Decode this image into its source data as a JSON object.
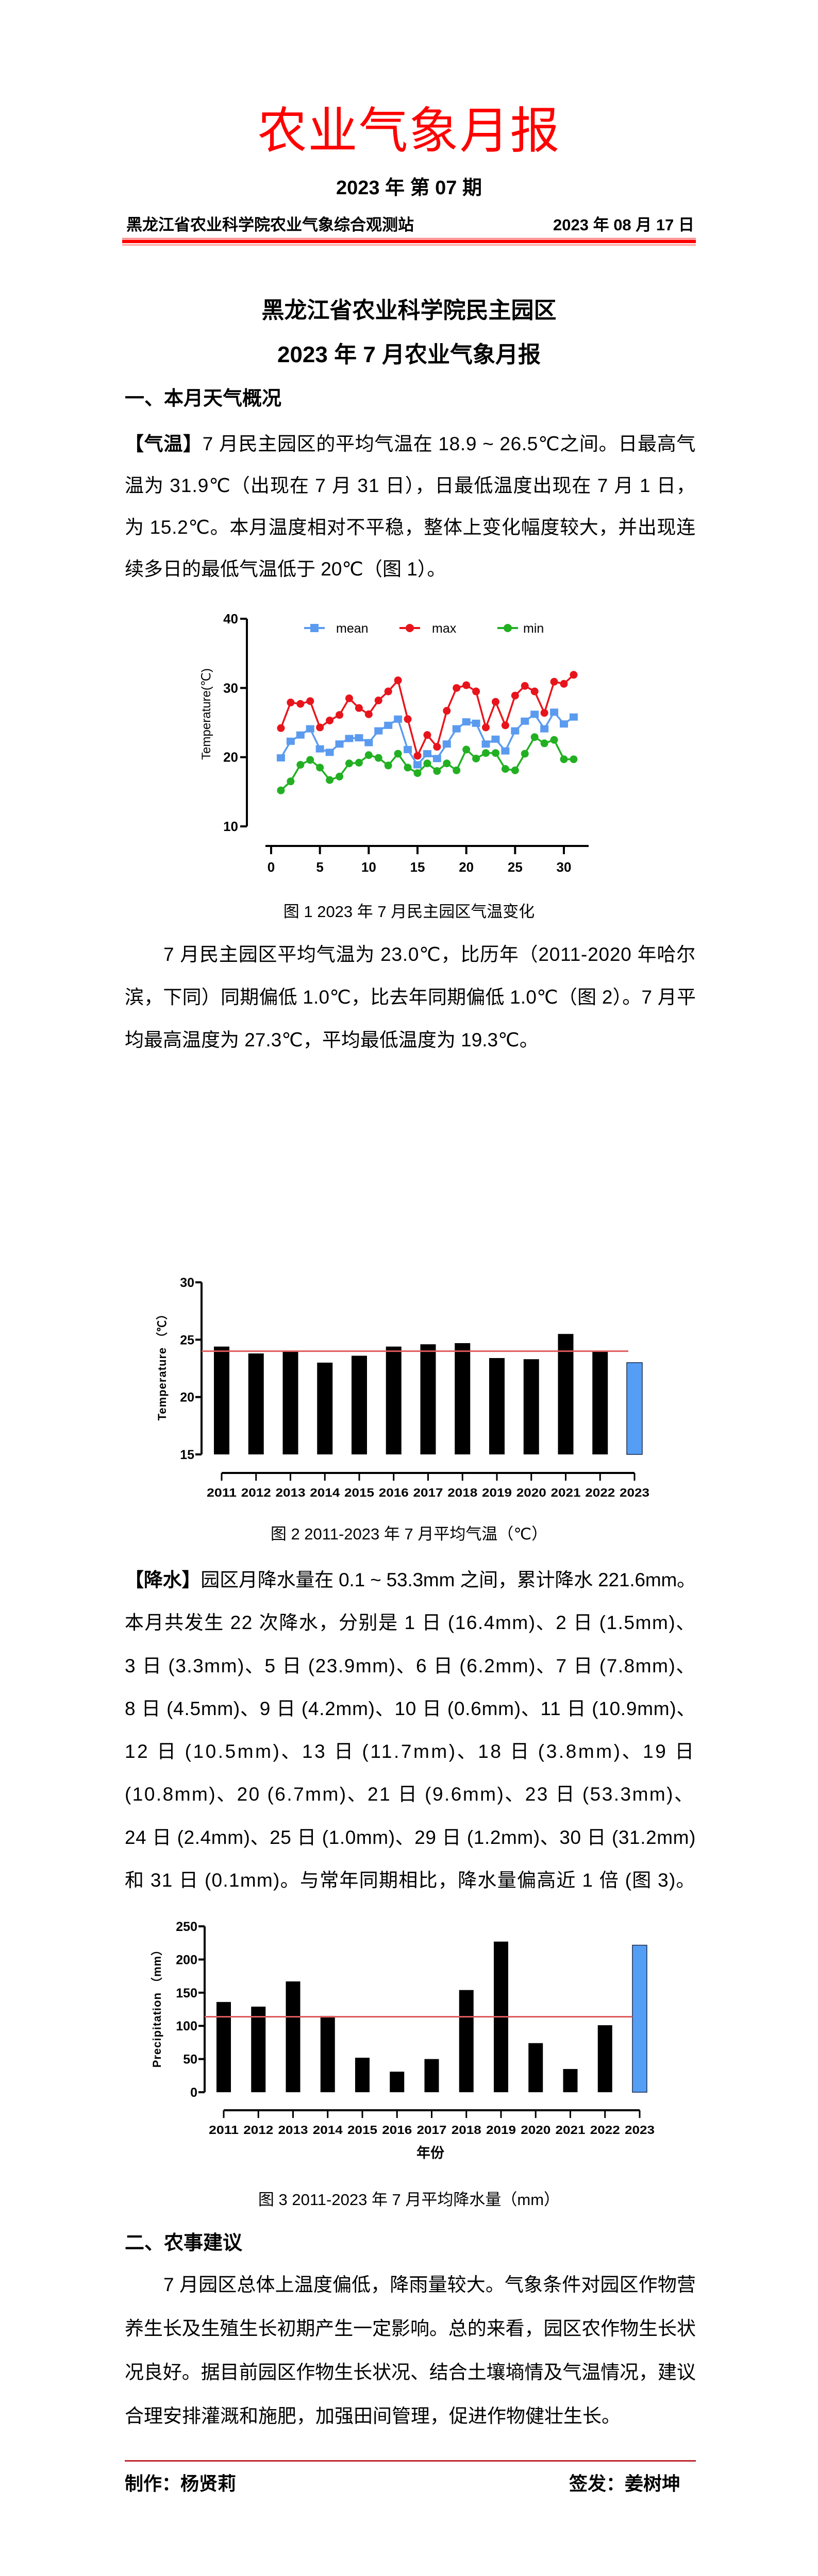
{
  "header": {
    "title": "农业气象月报",
    "issue": "2023 年  第 07 期",
    "organization": "黑龙江省农业科学院农业气象综合观测站",
    "date": "2023 年 08 月 17 日",
    "accent_color": "#ff0000"
  },
  "report": {
    "heading_line1": "黑龙江省农业科学院民主园区",
    "heading_line2": "2023 年 7 月农业气象月报"
  },
  "section1": {
    "title": "一、本月天气概况",
    "temperature": {
      "lead": "【气温】",
      "lines": [
        "7 月民主园区的平均气温在 18.9 ~ 26.5℃之间。日最高气",
        "温为 31.9℃（出现在 7 月 31 日），日最低温度出现在 7 月 1 日，",
        "为 15.2℃。本月温度相对不平稳，整体上变化幅度较大，并出现连",
        "续多日的最低气温低于 20℃（图 1）。"
      ]
    },
    "figure1_caption": "图 1 2023 年 7 月民主园区气温变化",
    "temperature_summary": {
      "lines": [
        "7 月民主园区平均气温为 23.0℃，比历年（2011-2020 年哈尔",
        "滨，下同）同期偏低 1.0℃，比去年同期偏低 1.0℃（图 2）。7 月平",
        "均最高温度为 27.3℃，平均最低温度为 19.3℃。"
      ]
    },
    "figure2_caption": "图 2 2011-2023 年 7 月平均气温（℃）",
    "precipitation": {
      "lead": "【降水】",
      "lines": [
        "园区月降水量在 0.1 ~ 53.3mm 之间，累计降水 221.6mm。",
        "本月共发生 22 次降水，分别是 1 日 (16.4mm)、2 日 (1.5mm)、",
        "3 日 (3.3mm)、5 日 (23.9mm)、6 日 (6.2mm)、7 日 (7.8mm)、",
        "8 日 (4.5mm)、9 日 (4.2mm)、10 日 (0.6mm)、11 日 (10.9mm)、",
        "12 日 (10.5mm)、13 日 (11.7mm)、18 日 (3.8mm)、19 日",
        " (10.8mm)、20 (6.7mm)、21 日 (9.6mm)、23 日 (53.3mm)、",
        "24 日 (2.4mm)、25 日 (1.0mm)、29 日 (1.2mm)、30 日 (31.2mm)",
        "和 31 日 (0.1mm)。与常年同期相比，降水量偏高近 1 倍 (图 3)。"
      ]
    },
    "figure3_caption": "图 3 2011-2023 年 7 月平均降水量（mm）"
  },
  "section2": {
    "title": "二、农事建议",
    "lines": [
      "7 月园区总体上温度偏低，降雨量较大。气象条件对园区作物营",
      "养生长及生殖生长初期产生一定影响。总的来看，园区农作物生长状",
      "况良好。据目前园区作物生长状况、结合土壤墒情及气温情况，建议",
      "合理安排灌溉和施肥，加强田间管理，促进作物健壮生长。"
    ]
  },
  "footer": {
    "author": "制作：杨贤莉",
    "approver": "签发：姜树坤"
  },
  "chart_data": [
    {
      "type": "line",
      "ylabel": "Temperature(℃)",
      "xlabel": "",
      "ylim": [
        10,
        40
      ],
      "yticks": [
        10,
        20,
        30,
        40
      ],
      "xlim": [
        0,
        31
      ],
      "xticks": [
        0,
        5,
        10,
        15,
        20,
        25,
        30
      ],
      "legend": "top",
      "grid": false,
      "x": [
        1,
        2,
        3,
        4,
        5,
        6,
        7,
        8,
        9,
        10,
        11,
        12,
        13,
        14,
        15,
        16,
        17,
        18,
        19,
        20,
        21,
        22,
        23,
        24,
        25,
        26,
        27,
        28,
        29,
        30,
        31
      ],
      "series": [
        {
          "name": "mean",
          "color": "#5b9bef",
          "marker": "square",
          "values": [
            19.9,
            22.3,
            23.2,
            24.1,
            21.2,
            20.7,
            21.9,
            22.7,
            22.8,
            22.1,
            23.8,
            24.6,
            25.5,
            21.1,
            18.9,
            20.5,
            19.8,
            21.9,
            24.1,
            25.1,
            24.9,
            21.9,
            22.6,
            20.9,
            23.8,
            25.2,
            26.2,
            24.1,
            26.5,
            24.8,
            25.8
          ]
        },
        {
          "name": "max",
          "color": "#e8141c",
          "marker": "circle",
          "values": [
            24.2,
            27.9,
            27.7,
            28.1,
            24.3,
            25.3,
            26.1,
            28.5,
            27.1,
            26.2,
            28.2,
            29.5,
            31.1,
            25.5,
            20.2,
            23.2,
            21.5,
            26.7,
            30.0,
            30.4,
            29.5,
            24.3,
            28.0,
            24.6,
            28.9,
            30.3,
            29.5,
            26.4,
            30.9,
            30.6,
            31.9
          ]
        },
        {
          "name": "min",
          "color": "#22b022",
          "marker": "circle",
          "values": [
            15.2,
            16.5,
            18.9,
            19.6,
            18.5,
            16.7,
            17.2,
            19.1,
            19.2,
            20.3,
            19.9,
            18.8,
            20.5,
            18.5,
            17.7,
            19.1,
            18.0,
            19.1,
            18.1,
            21.1,
            19.8,
            20.6,
            20.6,
            18.3,
            18.1,
            20.5,
            22.9,
            22.0,
            22.5,
            19.7,
            19.7
          ]
        }
      ]
    },
    {
      "type": "bar",
      "ylabel": "Temperature （℃）",
      "xlabel": "",
      "ylim": [
        15,
        30
      ],
      "yticks": [
        15,
        20,
        25,
        30
      ],
      "categories": [
        "2011",
        "2012",
        "2013",
        "2014",
        "2015",
        "2016",
        "2017",
        "2018",
        "2019",
        "2020",
        "2021",
        "2022",
        "2023"
      ],
      "values": [
        24.4,
        23.8,
        24.0,
        23.0,
        23.6,
        24.4,
        24.6,
        24.7,
        23.4,
        23.3,
        25.5,
        24.0,
        23.0
      ],
      "reference_line": 24.0,
      "bar_color": "#000000",
      "highlight_color": "#559ef5",
      "reference_color": "#e05a5a",
      "grid": false
    },
    {
      "type": "bar",
      "ylabel": "Precipitation （mm）",
      "xlabel": "年份",
      "ylim": [
        0,
        250
      ],
      "yticks": [
        0,
        50,
        100,
        150,
        200,
        250
      ],
      "categories": [
        "2011",
        "2012",
        "2013",
        "2014",
        "2015",
        "2016",
        "2017",
        "2018",
        "2019",
        "2020",
        "2021",
        "2022",
        "2023"
      ],
      "values": [
        136,
        129,
        167,
        115,
        52,
        31,
        50,
        154,
        227,
        74,
        35,
        101,
        221.6
      ],
      "reference_line": 113.7,
      "bar_color": "#000000",
      "highlight_color": "#559ef5",
      "reference_color": "#e05a5a",
      "grid": false
    }
  ]
}
